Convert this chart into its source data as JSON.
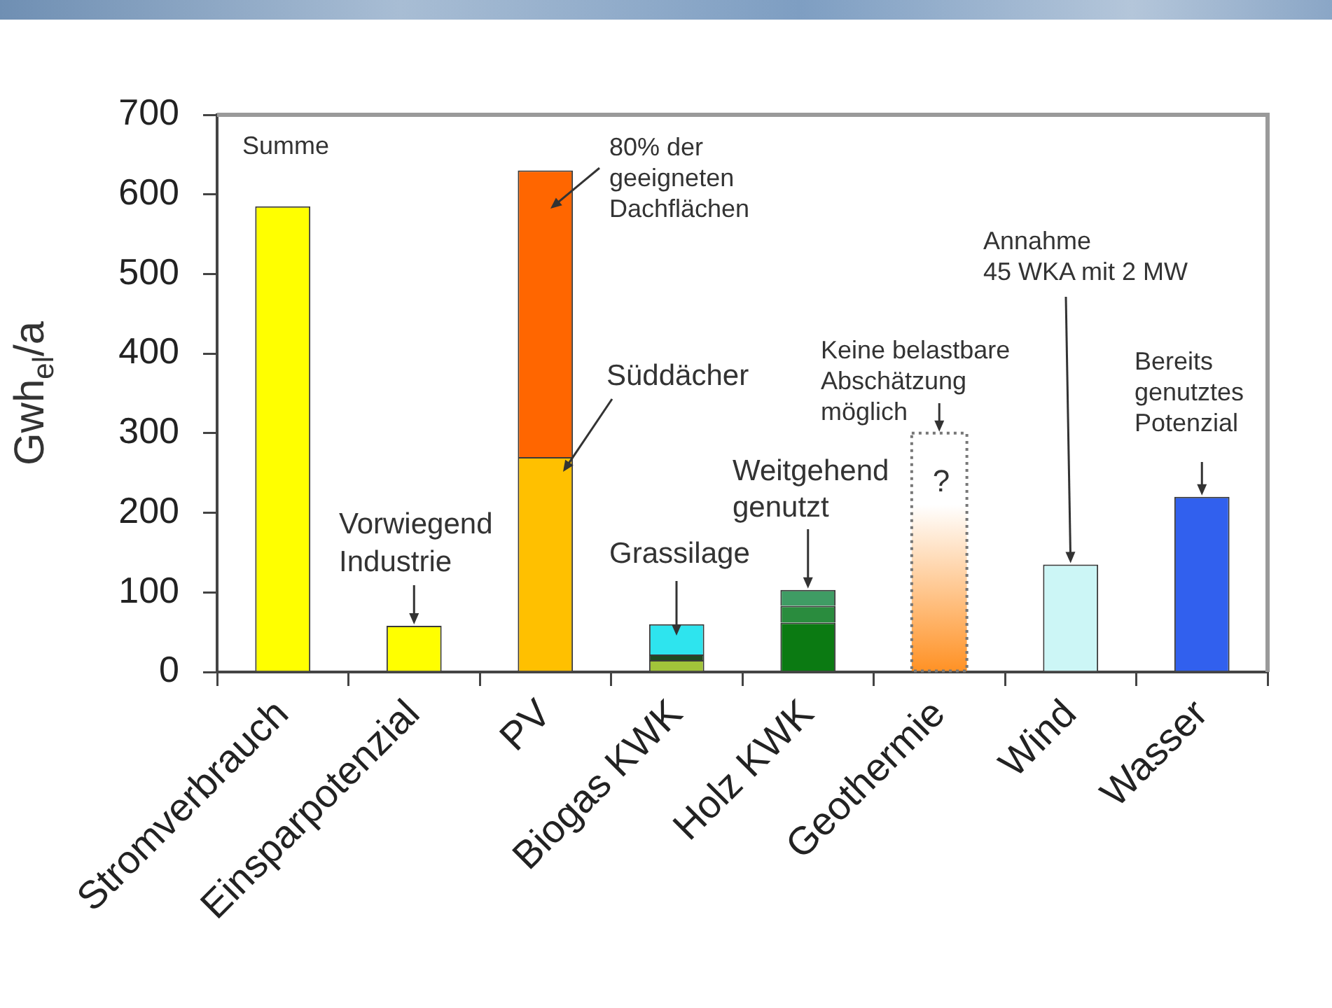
{
  "chart_data": {
    "type": "bar",
    "stacked": true,
    "ylabel": "Gwh$_{el}$/a",
    "categories": [
      "Stromverbrauch",
      "Einsparpotenzial",
      "PV",
      "Biogas KWK",
      "Holz KWK",
      "Geothermie",
      "Wind",
      "Wasser"
    ],
    "series": [
      {
        "colors": [
          "#ffff00",
          "#ffff00",
          "#ffc000",
          "#a2c43a",
          "#0b7a12",
          null,
          "#ccf6f6",
          "#3160ee"
        ],
        "values": [
          585,
          58,
          270,
          15,
          62,
          null,
          135,
          220
        ]
      },
      {
        "colors": [
          null,
          null,
          "#ff6600",
          "#1f4a22",
          "#2a8c3e",
          null,
          null,
          null
        ],
        "values": [
          null,
          null,
          360,
          7,
          21,
          null,
          null,
          null
        ]
      },
      {
        "colors": [
          null,
          null,
          null,
          "#2ee4ee",
          "#3f9c64",
          null,
          null,
          null
        ],
        "values": [
          null,
          null,
          null,
          38,
          20,
          null,
          null,
          null
        ]
      },
      {
        "color": "#ff9124",
        "line_style": "dotted",
        "values": [
          null,
          null,
          null,
          null,
          null,
          300,
          null,
          null
        ]
      }
    ],
    "ylim": [
      0,
      700
    ],
    "yticks": [
      0,
      100,
      200,
      300,
      400,
      500,
      600,
      700
    ],
    "grid": false,
    "legend": false,
    "annotations": [
      {
        "text": "Summe",
        "x": "Stromverbrauch",
        "y": 585
      },
      {
        "text": "Vorwiegend\nIndustrie",
        "x": "Einsparpotenzial",
        "y": 58
      },
      "80% der\ngeeigneten\nDachflächen",
      "Süddächer",
      "Grassilage",
      {
        "text": "Weitgehend\ngenutzt",
        "x": "Holz KWK",
        "y": 103
      },
      {
        "text": "Keine belastbare\nAbschätzung\nmöglich",
        "x": "Geothermie",
        "y": 300
      },
      "?",
      {
        "text": "Annahme\n45 WKA mit 2 MW",
        "x": "Wind",
        "y": 135
      },
      {
        "text": "Bereits\ngenutztes\nPotenzial",
        "x": "Wasser",
        "y": 220
      }
    ]
  }
}
